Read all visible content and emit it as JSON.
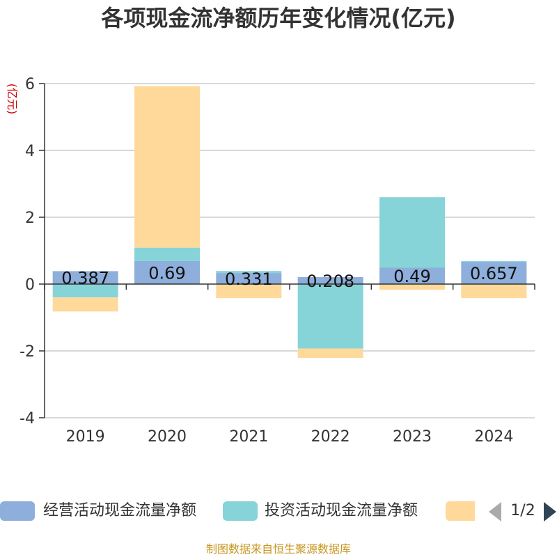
{
  "chart_data": {
    "type": "bar",
    "stacked": true,
    "title": "各项现金流净额历年变化情况(亿元)",
    "ylabel": "(亿元)",
    "categories": [
      "2019",
      "2020",
      "2021",
      "2022",
      "2023",
      "2024"
    ],
    "ylim": [
      -4,
      6
    ],
    "yticks": [
      -4,
      -2,
      0,
      2,
      4,
      6
    ],
    "grid": true,
    "series": [
      {
        "name": "经营活动现金流量净额",
        "color": "#8eaedb",
        "values": [
          0.387,
          0.69,
          0.331,
          0.208,
          0.49,
          0.657
        ],
        "labels": [
          "0.387",
          "0.69",
          "0.331",
          "0.208",
          "0.49",
          "0.657"
        ]
      },
      {
        "name": "投资活动现金流量净额",
        "color": "#86d4d8",
        "values": [
          -0.4,
          0.4,
          0.06,
          -1.93,
          2.11,
          0.03
        ]
      },
      {
        "color": "#fed99a",
        "values": [
          -0.42,
          4.83,
          -0.42,
          -0.28,
          -0.17,
          -0.42
        ]
      }
    ]
  },
  "legend": {
    "items": [
      {
        "label": "经营活动现金流量净额",
        "color": "#8eaedb"
      },
      {
        "label": "投资活动现金流量净额",
        "color": "#86d4d8"
      },
      {
        "label": "",
        "color": "#fed99a"
      }
    ],
    "page": "1/2"
  },
  "source": "制图数据来自恒生聚源数据库"
}
